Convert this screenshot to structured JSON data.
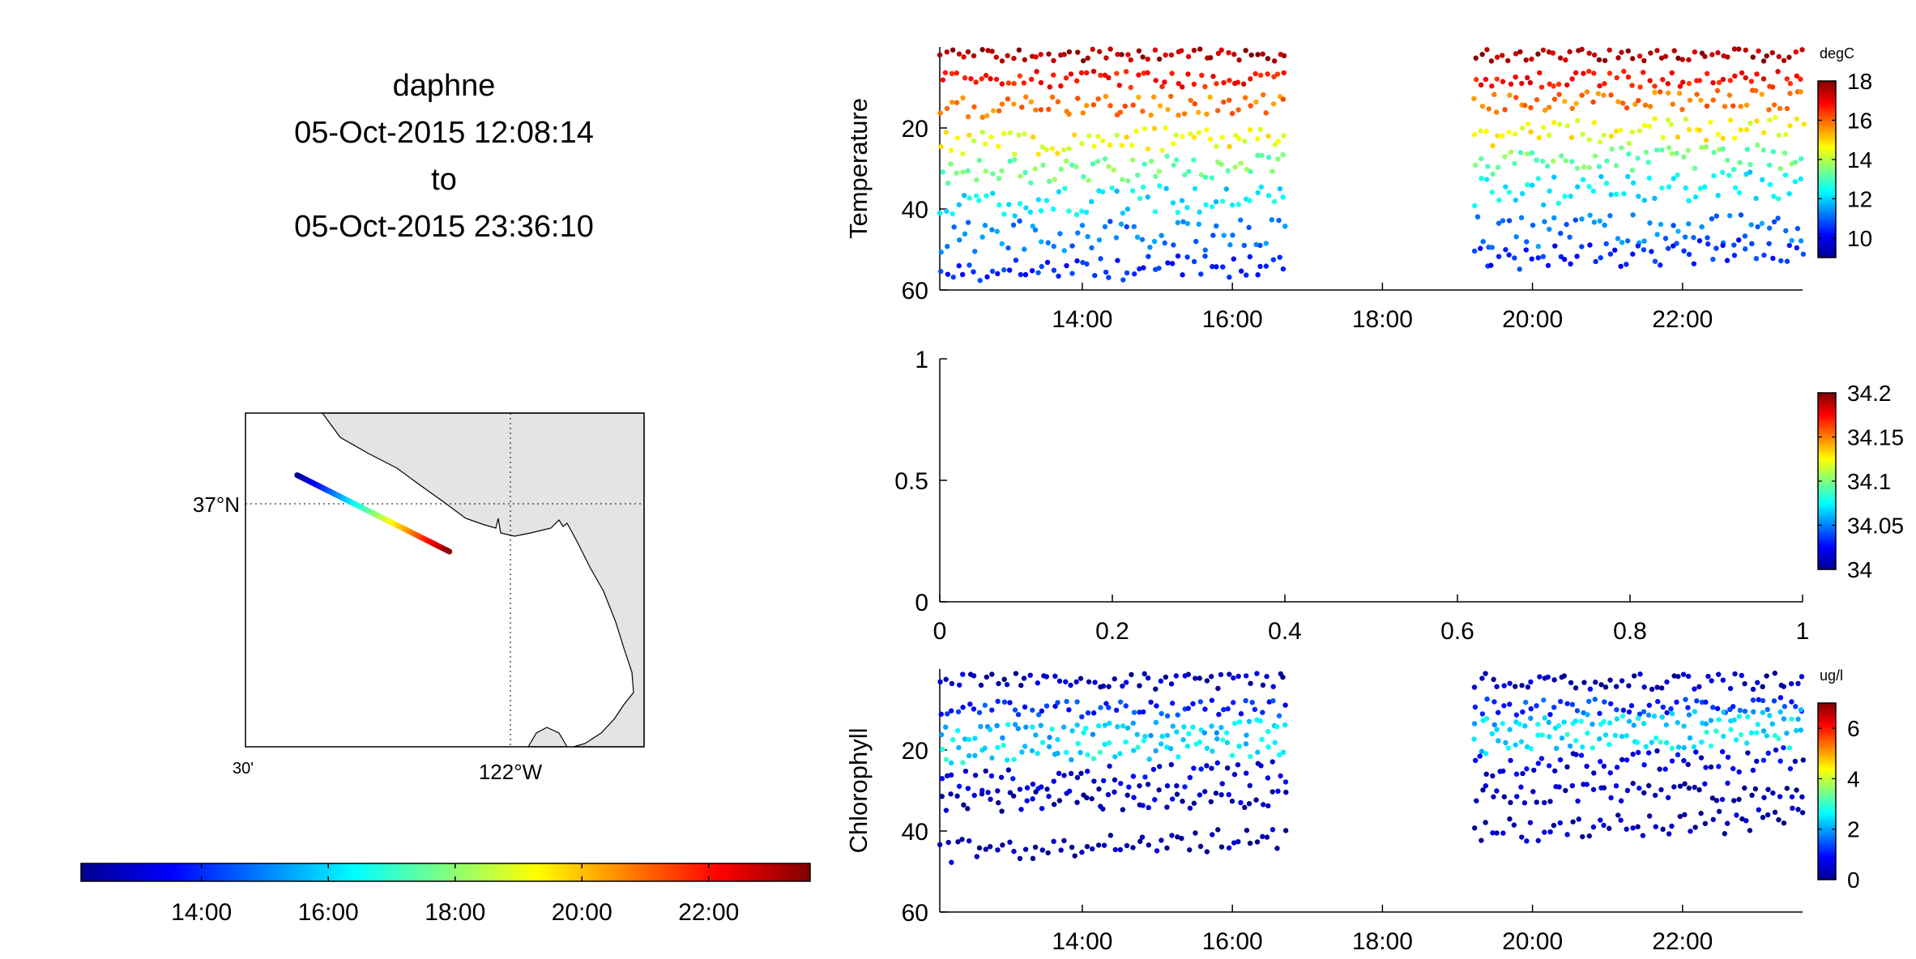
{
  "header": {
    "platform": "daphne",
    "start": "05-Oct-2015 12:08:14",
    "connector": "to",
    "end": "05-Oct-2015 23:36:10"
  },
  "map": {
    "lat_label": "37°N",
    "lon_label": "122°W",
    "lon_minor_label": "30'",
    "land_color": "#e4e4e4",
    "track_start": [
      -122.28,
      37.03
    ],
    "track_end": [
      -122.08,
      36.95
    ]
  },
  "time_colorbar": {
    "ticks": [
      "14:00",
      "16:00",
      "18:00",
      "20:00",
      "22:00"
    ],
    "range_hours": [
      12.1,
      23.6
    ]
  },
  "palette": [
    "#00008f",
    "#0000ff",
    "#00ffff",
    "#ffff00",
    "#ff0000",
    "#800000"
  ],
  "chart_data": [
    {
      "type": "scatter",
      "id": "temperature",
      "ylabel": "Temperature",
      "units": "degC",
      "x_unit": "hour of day",
      "xlim": [
        12.1,
        23.6
      ],
      "ylim": [
        60,
        0
      ],
      "xticks": [
        14,
        16,
        18,
        20,
        22
      ],
      "xtick_labels": [
        "14:00",
        "16:00",
        "18:00",
        "20:00",
        "22:00"
      ],
      "yticks": [
        20,
        40,
        60
      ],
      "clim": [
        9,
        18
      ],
      "cticks": [
        10,
        12,
        14,
        16,
        18
      ],
      "gap_hours": [
        16.7,
        19.2
      ],
      "depth_layers": [
        {
          "depth_start": 2,
          "depth_end": 2,
          "value": 17.6,
          "spread": 1.5
        },
        {
          "depth_start": 8,
          "depth_end": 8,
          "value": 16.8,
          "spread": 2
        },
        {
          "depth_start": 15,
          "depth_end": 13,
          "value": 15.8,
          "spread": 2.5
        },
        {
          "depth_start": 24,
          "depth_end": 20,
          "value": 14.6,
          "spread": 3
        },
        {
          "depth_start": 31,
          "depth_end": 27,
          "value": 13.4,
          "spread": 3
        },
        {
          "depth_start": 39,
          "depth_end": 34,
          "value": 12.2,
          "spread": 3.5
        },
        {
          "depth_start": 47,
          "depth_end": 45,
          "value": 11.2,
          "spread": 4
        },
        {
          "depth_start": 56,
          "depth_end": 50,
          "value": 10.4,
          "spread": 3
        }
      ]
    },
    {
      "type": "scatter",
      "id": "salinity",
      "xlim": [
        0,
        1
      ],
      "ylim": [
        0,
        1
      ],
      "xticks": [
        0,
        0.2,
        0.4,
        0.6,
        0.8,
        1
      ],
      "xtick_labels": [
        "0",
        "0.2",
        "0.4",
        "0.6",
        "0.8",
        "1"
      ],
      "yticks": [
        0,
        0.5,
        1
      ],
      "ytick_labels": [
        "0",
        "0.5",
        "1"
      ],
      "clim": [
        34,
        34.2
      ],
      "cticks": [
        34,
        34.05,
        34.1,
        34.15,
        34.2
      ],
      "ctick_labels": [
        "34",
        "34.05",
        "34.1",
        "34.15",
        "34.2"
      ],
      "points": []
    },
    {
      "type": "scatter",
      "id": "chlorophyll",
      "ylabel": "Chlorophyll",
      "units": "ug/l",
      "x_unit": "hour of day",
      "xlim": [
        12.1,
        23.6
      ],
      "ylim": [
        60,
        0
      ],
      "xticks": [
        14,
        16,
        18,
        20,
        22
      ],
      "xtick_labels": [
        "14:00",
        "16:00",
        "18:00",
        "20:00",
        "22:00"
      ],
      "yticks": [
        20,
        40,
        60
      ],
      "clim": [
        0,
        7
      ],
      "cticks": [
        0,
        2,
        4,
        6
      ],
      "gap_hours": [
        16.7,
        19.2
      ],
      "depth_layers": [
        {
          "depth_start": 3,
          "depth_end": 3,
          "value": 0.3,
          "spread": 2
        },
        {
          "depth_start": 10,
          "depth_end": 9,
          "value": 1.2,
          "spread": 2
        },
        {
          "depth_start": 16,
          "depth_end": 12,
          "value": 2.3,
          "spread": 2
        },
        {
          "depth_start": 21,
          "depth_end": 17,
          "value": 2.5,
          "spread": 2.5
        },
        {
          "depth_start": 28,
          "depth_end": 22,
          "value": 0.6,
          "spread": 3
        },
        {
          "depth_start": 33,
          "depth_end": 30,
          "value": 0.3,
          "spread": 2.5
        },
        {
          "depth_start": 45,
          "depth_end": 37,
          "value": 0.2,
          "spread": 3
        }
      ]
    }
  ]
}
